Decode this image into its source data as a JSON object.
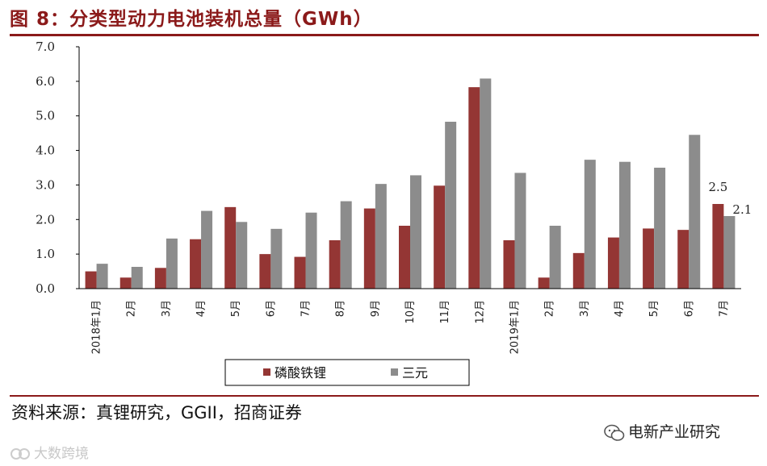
{
  "header": {
    "title": "图 8：分类型动力电池装机总量（GWh）"
  },
  "footer": {
    "source": "资料来源：真锂研究，GGII，招商证券",
    "watermark_right": "电新产业研究",
    "watermark_left": "大数跨境"
  },
  "chart_data": {
    "type": "bar",
    "categories": [
      "2018年1月",
      "2月",
      "3月",
      "4月",
      "5月",
      "6月",
      "7月",
      "8月",
      "9月",
      "10月",
      "11月",
      "12月",
      "2019年1月",
      "2月",
      "3月",
      "4月",
      "5月",
      "6月",
      "7月"
    ],
    "series": [
      {
        "name": "磷酸铁锂",
        "color": "#943634",
        "values": [
          0.5,
          0.32,
          0.6,
          1.43,
          2.36,
          1.0,
          0.92,
          1.4,
          2.32,
          1.82,
          2.98,
          5.83,
          1.4,
          0.32,
          1.03,
          1.48,
          1.74,
          1.7,
          2.45
        ]
      },
      {
        "name": "三元",
        "color": "#8c8c8c",
        "values": [
          0.72,
          0.63,
          1.45,
          2.25,
          1.93,
          1.73,
          2.2,
          2.53,
          3.03,
          3.28,
          4.83,
          6.08,
          3.35,
          1.82,
          3.73,
          3.67,
          3.5,
          4.45,
          2.1
        ]
      }
    ],
    "ylim": [
      0,
      7
    ],
    "yticks": [
      "0.0",
      "1.0",
      "2.0",
      "3.0",
      "4.0",
      "5.0",
      "6.0",
      "7.0"
    ],
    "data_labels": [
      "2.5",
      "2.1"
    ],
    "legend_position": "bottom",
    "grid": false
  }
}
